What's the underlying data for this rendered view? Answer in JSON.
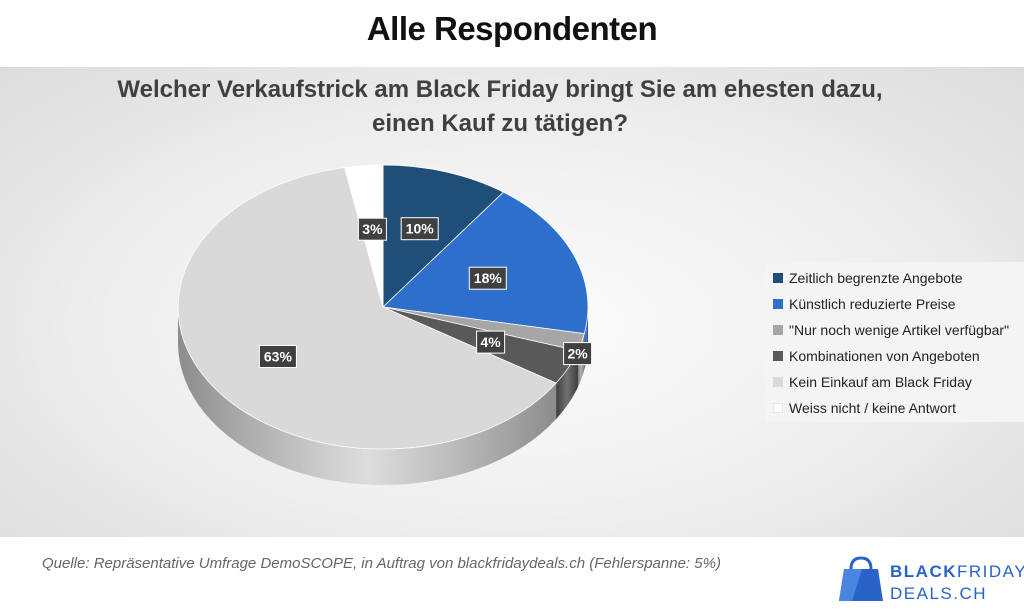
{
  "header": {
    "title": "Alle Respondenten"
  },
  "chart_data": {
    "type": "pie",
    "title_lines": [
      "Welcher Verkaufstrick am Black Friday bringt Sie am ehesten dazu,",
      "einen Kauf zu tätigen?"
    ],
    "slices": [
      {
        "label": "Zeitlich begrenzte Angebote",
        "value": 10,
        "data_label": "10%",
        "color": "#1f4e79",
        "side": "#12324f"
      },
      {
        "label": "Künstlich reduzierte Preise",
        "value": 18,
        "data_label": "18%",
        "color": "#2e6fcb",
        "side": "#1d4a8a"
      },
      {
        "label": "\"Nur noch wenige Artikel verfügbar\"",
        "value": 2,
        "data_label": "2%",
        "color": "#a6a6a6",
        "side": "#7a7a7a"
      },
      {
        "label": "Kombinationen von Angeboten",
        "value": 4,
        "data_label": "4%",
        "color": "#595959",
        "side": "#3d3d3d"
      },
      {
        "label": "Kein Einkauf am Black Friday",
        "value": 63,
        "data_label": "63%",
        "color": "#d9d9d9",
        "side": "#8c8c8c"
      },
      {
        "label": "Weiss nicht / keine Antwort",
        "value": 3,
        "data_label": "3%",
        "color": "#ffffff",
        "side": "#bfbfbf"
      }
    ],
    "legend_position": "right"
  },
  "footer": {
    "source": "Quelle: Repräsentative Umfrage DemoSCOPE, in Auftrag von blackfridaydeals.ch (Fehlerspanne: 5%)",
    "logo_line1_a": "BLACK",
    "logo_line1_b": "FRIDAY",
    "logo_line2": "DEALS.CH",
    "logo_color": "#2a63c7"
  }
}
